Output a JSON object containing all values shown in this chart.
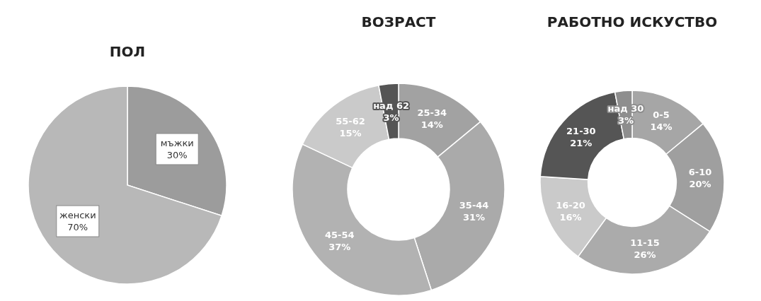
{
  "chart_data": [
    {
      "type": "pie",
      "title": "ПОЛ",
      "categories": [
        "мъжки",
        "женски"
      ],
      "values": [
        30,
        70
      ],
      "value_labels": [
        "30%",
        "70%"
      ],
      "colors": [
        "#9c9c9c",
        "#b8b8b8"
      ]
    },
    {
      "type": "donut",
      "title": "ВОЗРАСТ",
      "categories": [
        "25-34",
        "35-44",
        "45-54",
        "55-62",
        "над 62"
      ],
      "values": [
        14,
        31,
        37,
        15,
        3
      ],
      "value_labels": [
        "14%",
        "31%",
        "37%",
        "15%",
        "3%"
      ],
      "colors": [
        "#a2a2a2",
        "#aaaaaa",
        "#b2b2b2",
        "#cacaca",
        "#555555"
      ]
    },
    {
      "type": "donut",
      "title": "РАБОТНО ИСКУСТВО",
      "categories": [
        "0-5",
        "6-10",
        "11-15",
        "16-20",
        "21-30",
        "над 30"
      ],
      "values": [
        14,
        20,
        26,
        16,
        21,
        3
      ],
      "value_labels": [
        "14%",
        "20%",
        "26%",
        "16%",
        "21%",
        "3%"
      ],
      "colors": [
        "#a6a6a6",
        "#9f9f9f",
        "#ababab",
        "#cacaca",
        "#555555",
        "#8e8e8e"
      ]
    }
  ]
}
